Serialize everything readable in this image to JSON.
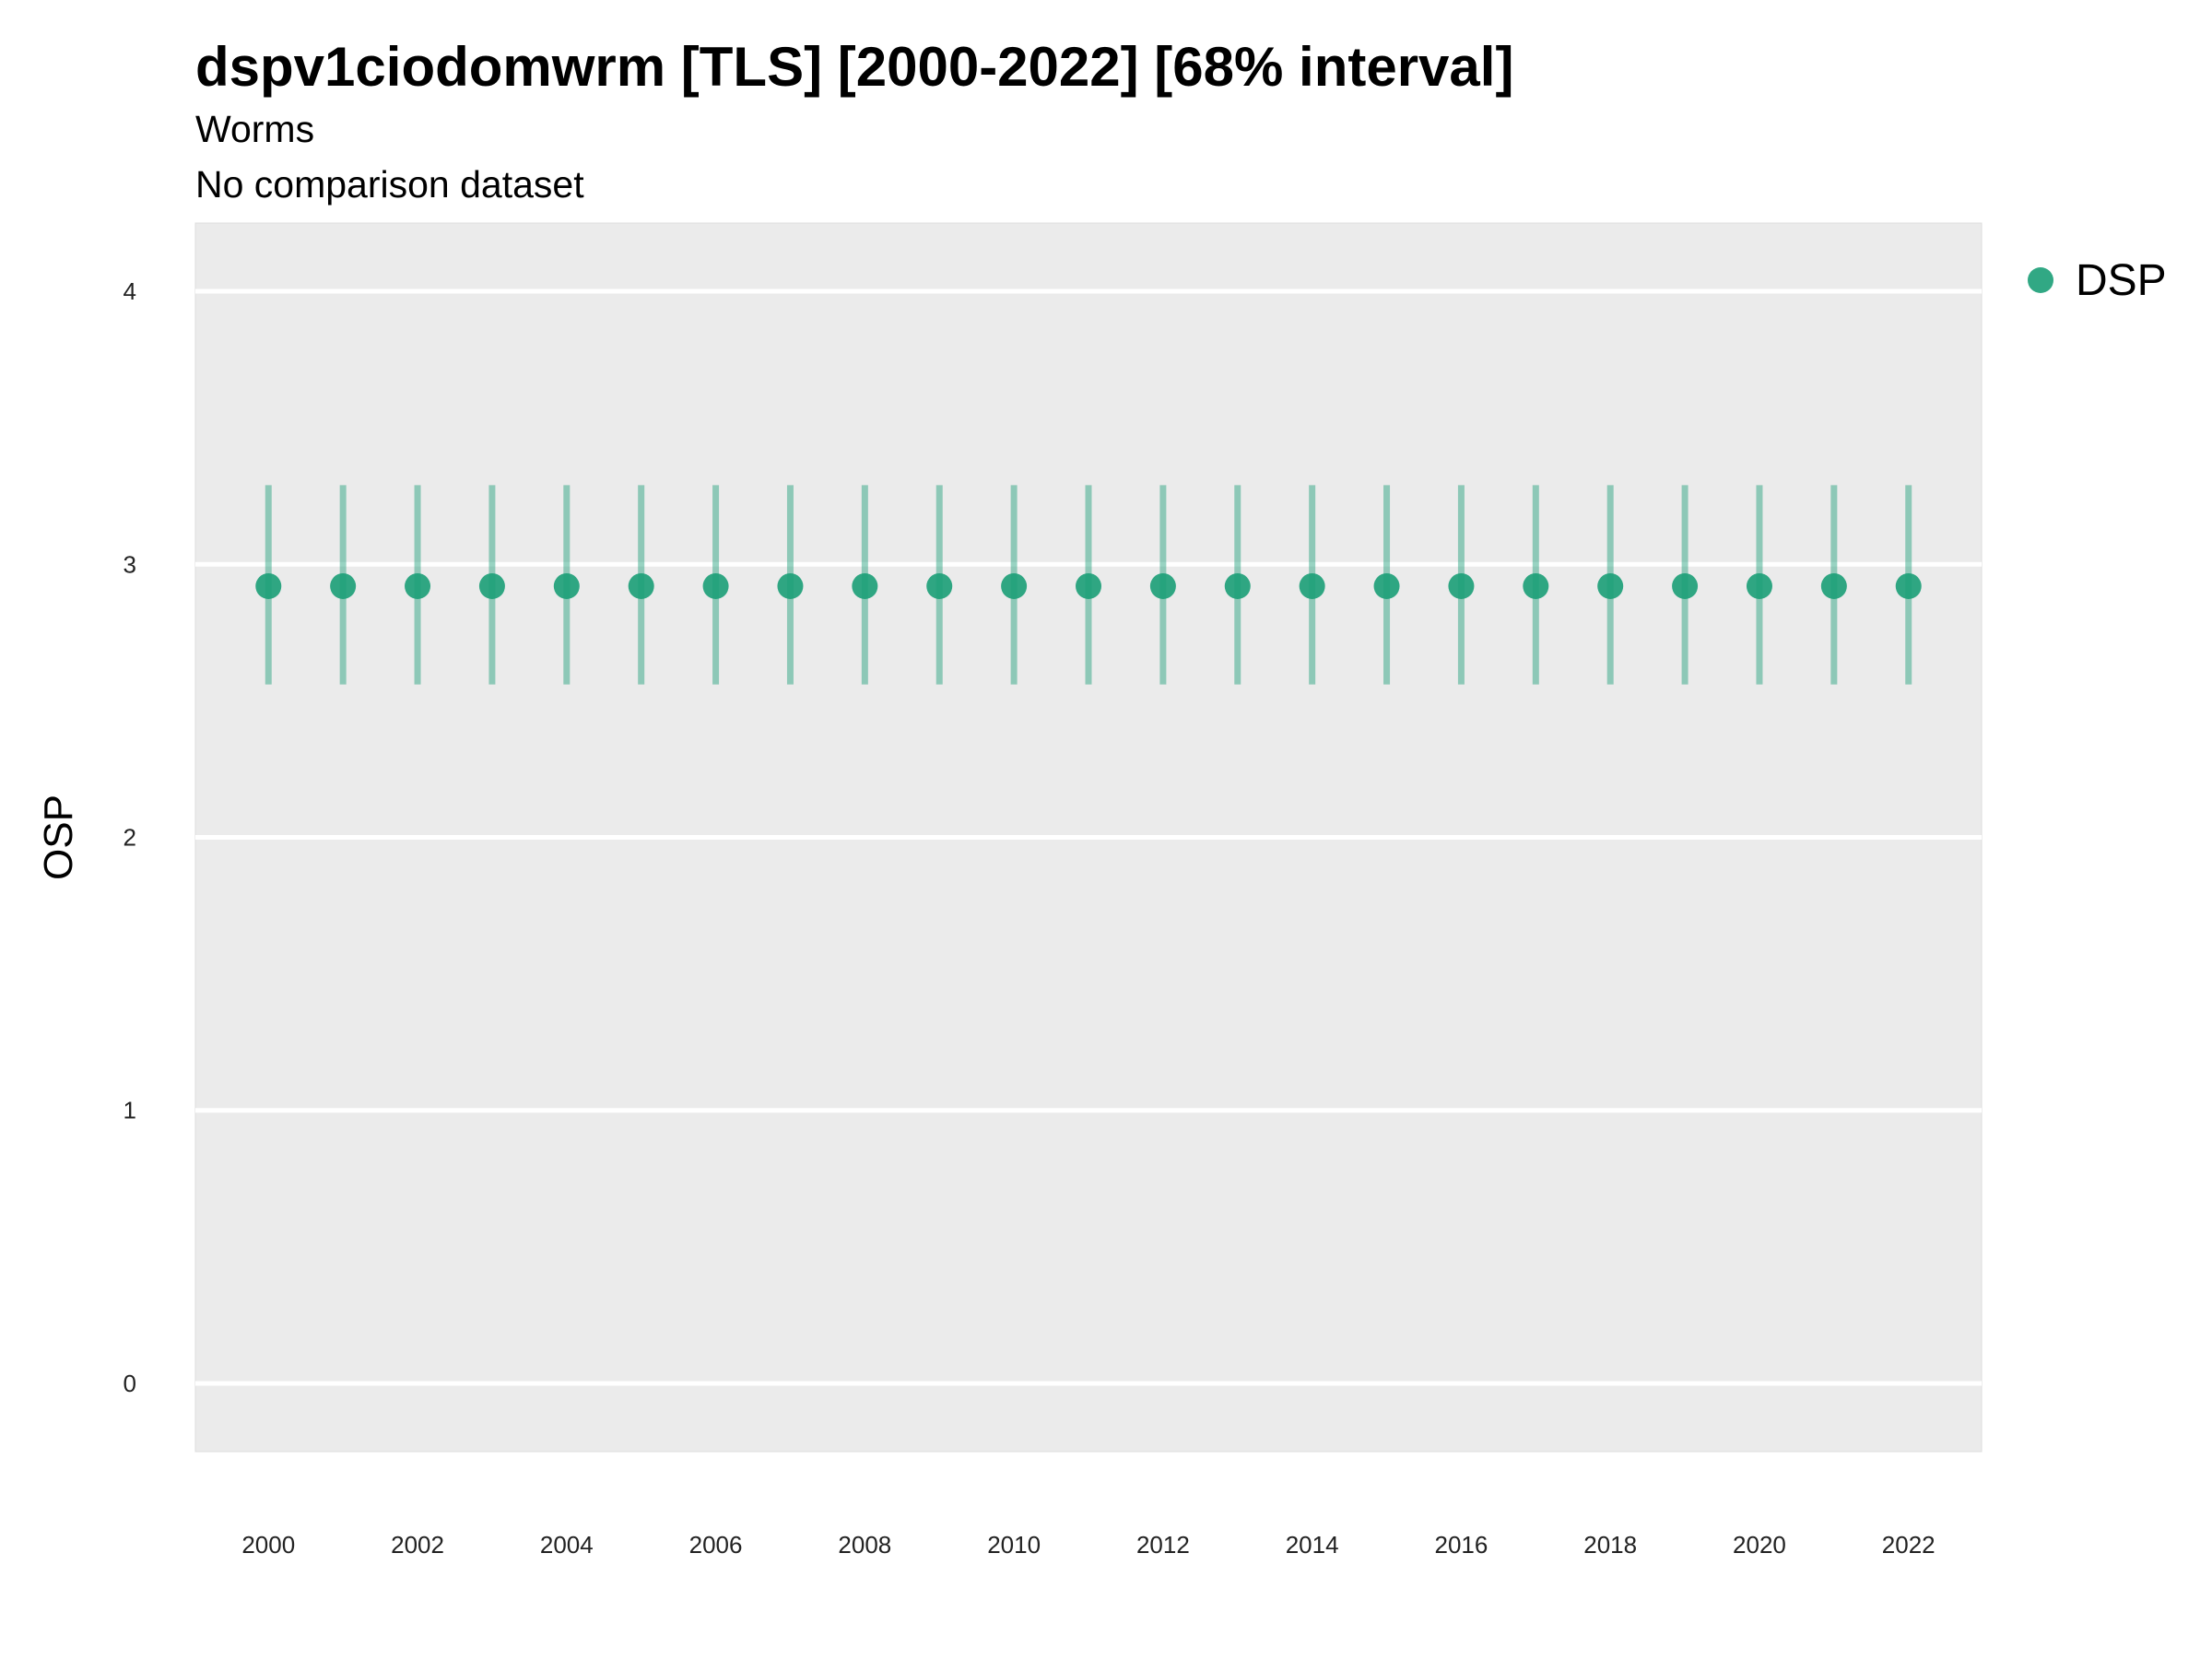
{
  "chart_data": {
    "type": "scatter",
    "title": "dspv1ciodomwrm [TLS] [2000-2022] [68% interval]",
    "subtitle": "Worms",
    "subtitle2": "No comparison dataset",
    "xlabel": "",
    "ylabel": "OSP",
    "x": [
      2000,
      2001,
      2002,
      2003,
      2004,
      2005,
      2006,
      2007,
      2008,
      2009,
      2010,
      2011,
      2012,
      2013,
      2014,
      2015,
      2016,
      2017,
      2018,
      2019,
      2020,
      2021,
      2022
    ],
    "xlim": [
      1999.02,
      2022.98
    ],
    "ylim": [
      -0.25,
      4.25
    ],
    "x_ticks": [
      2000,
      2002,
      2004,
      2006,
      2008,
      2010,
      2012,
      2014,
      2016,
      2018,
      2020,
      2022
    ],
    "y_ticks": [
      0,
      1,
      2,
      3,
      4
    ],
    "grid": true,
    "legend_position": "right",
    "series": [
      {
        "name": "DSP",
        "color": "#1b9e77",
        "values": [
          2.92,
          2.92,
          2.92,
          2.92,
          2.92,
          2.92,
          2.92,
          2.92,
          2.92,
          2.92,
          2.92,
          2.92,
          2.92,
          2.92,
          2.92,
          2.92,
          2.92,
          2.92,
          2.92,
          2.92,
          2.92,
          2.92,
          2.92
        ],
        "lower": [
          2.56,
          2.56,
          2.56,
          2.56,
          2.56,
          2.56,
          2.56,
          2.56,
          2.56,
          2.56,
          2.56,
          2.56,
          2.56,
          2.56,
          2.56,
          2.56,
          2.56,
          2.56,
          2.56,
          2.56,
          2.56,
          2.56,
          2.56
        ],
        "upper": [
          3.29,
          3.29,
          3.29,
          3.29,
          3.29,
          3.29,
          3.29,
          3.29,
          3.29,
          3.29,
          3.29,
          3.29,
          3.29,
          3.29,
          3.29,
          3.29,
          3.29,
          3.29,
          3.29,
          3.29,
          3.29,
          3.29,
          3.29
        ]
      }
    ]
  }
}
